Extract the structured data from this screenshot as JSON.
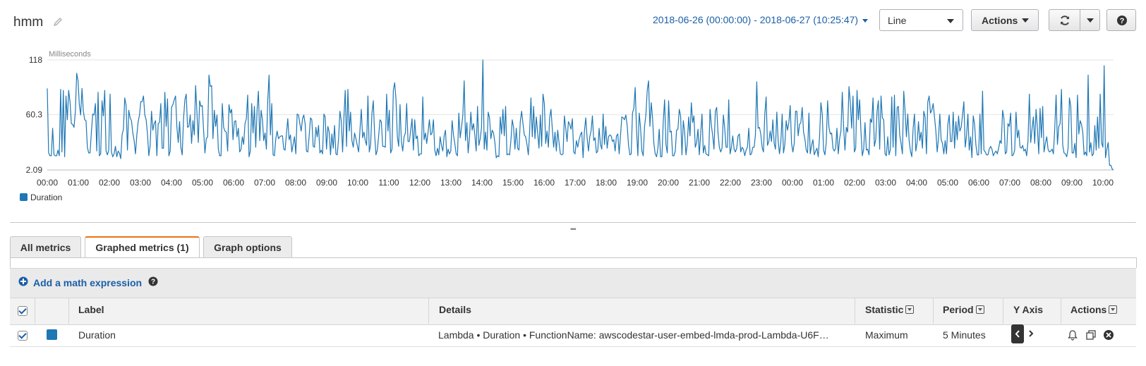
{
  "header": {
    "title": "hmm",
    "time_range": "2018-06-26 (00:00:00) - 2018-06-27 (10:25:47)",
    "graph_type": "Line",
    "actions_label": "Actions"
  },
  "chart_data": {
    "type": "line",
    "ylabel": "Milliseconds",
    "yticks": [
      "118",
      "60.3",
      "2.09"
    ],
    "ylim": [
      2.09,
      118
    ],
    "xticks": [
      "00:00",
      "01:00",
      "02:00",
      "03:00",
      "04:00",
      "05:00",
      "06:00",
      "07:00",
      "08:00",
      "09:00",
      "10:00",
      "11:00",
      "12:00",
      "13:00",
      "14:00",
      "15:00",
      "16:00",
      "17:00",
      "18:00",
      "19:00",
      "20:00",
      "21:00",
      "22:00",
      "23:00",
      "00:00",
      "01:00",
      "02:00",
      "03:00",
      "04:00",
      "05:00",
      "06:00",
      "07:00",
      "08:00",
      "09:00",
      "10:00"
    ],
    "grid": true,
    "legend_position": "bottom-left",
    "series": [
      {
        "name": "Duration",
        "color": "#1f77b4",
        "values": [
          88,
          20,
          17,
          17,
          46,
          18,
          17,
          17,
          23,
          17,
          87,
          21,
          86,
          16,
          80,
          55,
          86,
          74,
          51,
          50,
          47,
          64,
          104,
          96,
          71,
          60,
          88,
          64,
          55,
          54,
          26,
          20,
          20,
          42,
          61,
          60,
          72,
          22,
          84,
          17,
          19,
          75,
          59,
          86,
          22,
          18,
          23,
          82,
          21,
          16,
          19,
          27,
          16,
          22,
          20,
          14,
          39,
          45,
          78,
          70,
          23,
          65,
          57,
          54,
          41,
          33,
          19,
          39,
          53,
          60,
          74,
          74,
          80,
          60,
          55,
          40,
          17,
          28,
          64,
          44,
          51,
          54,
          17,
          51,
          52,
          72,
          25,
          25,
          84,
          48,
          77,
          17,
          22,
          68,
          71,
          76,
          80,
          47,
          31,
          53,
          26,
          18,
          56,
          76,
          82,
          47,
          48,
          60,
          30,
          54,
          39,
          91,
          62,
          31,
          75,
          69,
          70,
          44,
          20,
          35,
          37,
          102,
          90,
          91,
          35,
          65,
          48,
          60,
          24,
          17,
          17,
          72,
          47,
          43,
          42,
          22,
          71,
          62,
          66,
          34,
          53,
          54,
          37,
          46,
          21,
          24,
          37,
          29,
          51,
          56,
          81,
          16,
          22,
          72,
          41,
          69,
          26,
          65,
          85,
          33,
          65,
          55,
          33,
          41,
          24,
          75,
          102,
          39,
          72,
          18,
          17,
          35,
          43,
          35,
          37,
          38,
          38,
          24,
          23,
          40,
          56,
          34,
          39,
          21,
          29,
          37,
          19,
          61,
          60,
          51,
          43,
          56,
          60,
          51,
          22,
          21,
          38,
          57,
          55,
          27,
          26,
          47,
          37,
          49,
          20,
          23,
          19,
          61,
          58,
          24,
          48,
          42,
          18,
          40,
          25,
          49,
          19,
          18,
          35,
          64,
          54,
          21,
          58,
          86,
          27,
          87,
          43,
          63,
          33,
          26,
          41,
          35,
          28,
          21,
          44,
          66,
          36,
          42,
          33,
          28,
          80,
          21,
          29,
          62,
          75,
          39,
          18,
          23,
          38,
          55,
          53,
          27,
          27,
          26,
          82,
          43,
          65,
          20,
          24,
          86,
          94,
          76,
          37,
          27,
          71,
          32,
          22,
          37,
          41,
          72,
          32,
          32,
          44,
          56,
          23,
          55,
          35,
          38,
          17,
          19,
          19,
          79,
          34,
          41,
          30,
          42,
          55,
          39,
          41,
          55,
          23,
          17,
          25,
          18,
          37,
          28,
          22,
          38,
          44,
          16,
          24,
          19,
          22,
          54,
          39,
          30,
          19,
          17,
          62,
          36,
          47,
          60,
          96,
          33,
          52,
          20,
          36,
          63,
          44,
          51,
          39,
          22,
          69,
          28,
          35,
          47,
          118,
          24,
          42,
          23,
          63,
          57,
          35,
          44,
          41,
          31,
          15,
          17,
          16,
          58,
          40,
          66,
          38,
          69,
          18,
          19,
          18,
          33,
          55,
          47,
          24,
          46,
          25,
          23,
          53,
          64,
          51,
          39,
          37,
          29,
          18,
          42,
          78,
          37,
          69,
          35,
          58,
          41,
          25,
          60,
          27,
          82,
          72,
          30,
          43,
          26,
          57,
          66,
          45,
          26,
          42,
          22,
          44,
          31,
          19,
          18,
          19,
          59,
          46,
          32,
          53,
          50,
          45,
          56,
          21,
          19,
          33,
          26,
          34,
          39,
          42,
          15,
          43,
          57,
          36,
          22,
          37,
          43,
          59,
          33,
          36,
          20,
          22,
          46,
          29,
          24,
          61,
          29,
          48,
          25,
          37,
          39,
          38,
          32,
          34,
          22,
          38,
          40,
          19,
          38,
          58,
          57,
          55,
          60,
          49,
          28,
          18,
          19,
          62,
          67,
          89,
          45,
          17,
          62,
          47,
          22,
          17,
          48,
          60,
          86,
          96,
          48,
          73,
          57,
          30,
          19,
          16,
          25,
          45,
          16,
          16,
          53,
          76,
          29,
          20,
          75,
          42,
          43,
          17,
          17,
          22,
          44,
          45,
          66,
          59,
          18,
          54,
          42,
          18,
          30,
          58,
          38,
          73,
          52,
          59,
          26,
          31,
          45,
          18,
          40,
          61,
          20,
          28,
          19,
          18,
          17,
          66,
          49,
          38,
          24,
          64,
          68,
          41,
          26,
          21,
          25,
          60,
          46,
          26,
          26,
          76,
          19,
          26,
          38,
          24,
          21,
          25,
          38,
          40,
          21,
          26,
          24,
          17,
          23,
          26,
          46,
          18,
          19,
          26,
          26,
          39,
          95,
          46,
          47,
          40,
          26,
          21,
          61,
          79,
          28,
          32,
          43,
          32,
          55,
          30,
          24,
          63,
          33,
          19,
          31,
          61,
          20,
          29,
          54,
          44,
          52,
          70,
          30,
          21,
          30,
          64,
          64,
          38,
          50,
          52,
          68,
          42,
          35,
          23,
          20,
          62,
          19,
          28,
          34,
          18,
          22,
          25,
          16,
          37,
          73,
          61,
          23,
          18,
          31,
          75,
          47,
          40,
          41,
          25,
          22,
          25,
          46,
          19,
          35,
          43,
          84,
          47,
          23,
          47,
          42,
          90,
          73,
          46,
          80,
          21,
          25,
          86,
          55,
          76,
          42,
          17,
          24,
          52,
          23,
          24,
          18,
          56,
          52,
          78,
          27,
          34,
          64,
          75,
          24,
          80,
          57,
          55,
          19,
          17,
          37,
          18,
          24,
          79,
          26,
          81,
          17,
          68,
          69,
          39,
          30,
          19,
          85,
          64,
          37,
          61,
          33,
          22,
          16,
          46,
          61,
          22,
          31,
          53,
          33,
          42,
          25,
          64,
          58,
          19,
          74,
          80,
          62,
          65,
          72,
          58,
          43,
          21,
          36,
          61,
          34,
          30,
          19,
          33,
          19,
          50,
          60,
          32,
          32,
          63,
          25,
          53,
          34,
          59,
          43,
          47,
          60,
          74,
          26,
          38,
          61,
          23,
          37,
          15,
          59,
          50,
          28,
          18,
          18,
          61,
          19,
          85,
          23,
          21,
          18,
          18,
          24,
          27,
          24,
          17,
          20,
          22,
          19,
          25,
          33,
          30,
          65,
          56,
          19,
          21,
          51,
          48,
          62,
          17,
          18,
          23,
          63,
          36,
          44,
          26,
          25,
          28,
          22,
          24,
          17,
          33,
          82,
          31,
          45,
          58,
          30,
          66,
          46,
          19,
          67,
          36,
          69,
          21,
          30,
          37,
          24,
          21,
          22,
          24,
          19,
          46,
          81,
          29,
          48,
          51,
          87,
          28,
          20,
          19,
          16,
          25,
          78,
          69,
          20,
          20,
          30,
          15,
          81,
          40,
          54,
          50,
          42,
          18,
          21,
          17,
          102,
          21,
          31,
          17,
          19,
          49,
          23,
          58,
          25,
          82,
          31,
          26,
          112,
          15,
          24,
          31,
          7,
          7,
          3,
          2.09
        ]
      }
    ]
  },
  "tabs": {
    "all": "All metrics",
    "graphed": "Graphed metrics (1)",
    "options": "Graph options"
  },
  "math": {
    "add_label": "Add a math expression"
  },
  "table": {
    "headers": {
      "label": "Label",
      "details": "Details",
      "statistic": "Statistic",
      "period": "Period",
      "yaxis": "Y Axis",
      "actions": "Actions"
    },
    "rows": [
      {
        "label": "Duration",
        "color": "#1f77b4",
        "details": "Lambda • Duration • FunctionName: awscodestar-user-embed-lmda-prod-Lambda-U6F…",
        "statistic": "Maximum",
        "period": "5 Minutes"
      }
    ]
  }
}
